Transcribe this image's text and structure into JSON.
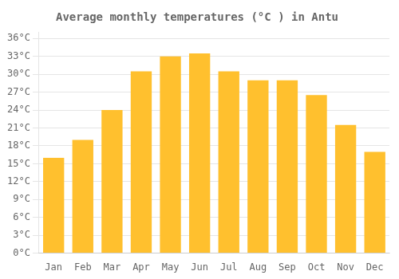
{
  "chart_data": {
    "type": "bar",
    "title": "Average monthly temperatures (°C ) in Antu",
    "categories": [
      "Jan",
      "Feb",
      "Mar",
      "Apr",
      "May",
      "Jun",
      "Jul",
      "Aug",
      "Sep",
      "Oct",
      "Nov",
      "Dec"
    ],
    "values": [
      16,
      19,
      24,
      30.5,
      33,
      33.5,
      30.5,
      29,
      29,
      26.5,
      21.5,
      17
    ],
    "color": "#FFC02E",
    "ylim": [
      0,
      37
    ],
    "yticks": [
      {
        "value": 0,
        "label": "0°C"
      },
      {
        "value": 3,
        "label": "3°C"
      },
      {
        "value": 6,
        "label": "6°C"
      },
      {
        "value": 9,
        "label": "9°C"
      },
      {
        "value": 12,
        "label": "12°C"
      },
      {
        "value": 15,
        "label": "15°C"
      },
      {
        "value": 18,
        "label": "18°C"
      },
      {
        "value": 21,
        "label": "21°C"
      },
      {
        "value": 24,
        "label": "24°C"
      },
      {
        "value": 27,
        "label": "27°C"
      },
      {
        "value": 30,
        "label": "30°C"
      },
      {
        "value": 33,
        "label": "33°C"
      },
      {
        "value": 36,
        "label": "36°C"
      }
    ],
    "grid": true
  }
}
